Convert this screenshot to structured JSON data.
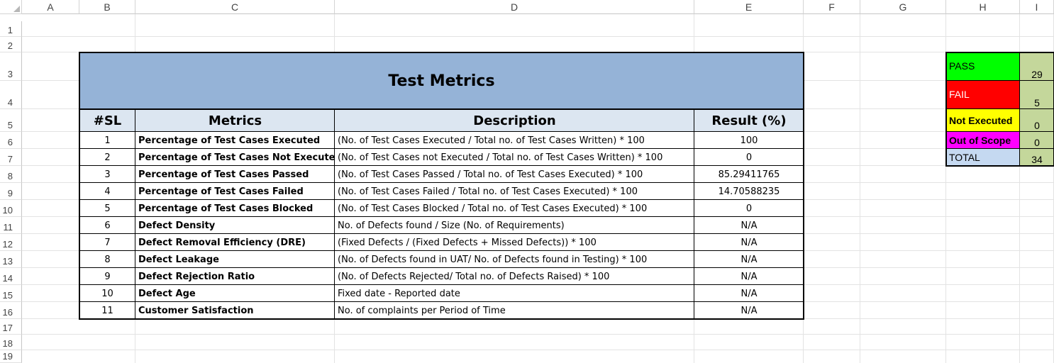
{
  "sheet": {
    "columns": [
      "A",
      "B",
      "C",
      "D",
      "E",
      "F",
      "G",
      "H",
      "I"
    ],
    "rows": [
      "1",
      "2",
      "3",
      "4",
      "5",
      "6",
      "7",
      "8",
      "9",
      "10",
      "11",
      "12",
      "13",
      "14",
      "15",
      "16",
      "17",
      "18",
      "19"
    ]
  },
  "metrics_table": {
    "title": "Test Metrics",
    "headers": {
      "sl": "#SL",
      "metrics": "Metrics",
      "description": "Description",
      "result": "Result (%)"
    },
    "rows": [
      {
        "sl": "1",
        "metric": "Percentage of Test Cases Executed",
        "description": "(No. of Test Cases Executed / Total no. of Test Cases Written) * 100",
        "result": "100"
      },
      {
        "sl": "2",
        "metric": "Percentage of Test Cases Not Executed",
        "description": "(No. of Test Cases not Executed / Total no. of Test Cases Written) * 100",
        "result": "0"
      },
      {
        "sl": "3",
        "metric": "Percentage of Test Cases Passed",
        "description": "(No. of Test Cases Passed / Total no. of Test Cases Executed) * 100",
        "result": "85.29411765"
      },
      {
        "sl": "4",
        "metric": "Percentage of Test Cases Failed",
        "description": "(No. of Test Cases Failed / Total no. of Test Cases Executed) * 100",
        "result": "14.70588235"
      },
      {
        "sl": "5",
        "metric": "Percentage of Test Cases Blocked",
        "description": "(No. of Test Cases Blocked / Total no. of Test Cases Executed) * 100",
        "result": "0"
      },
      {
        "sl": "6",
        "metric": "Defect Density",
        "description": "No. of Defects found / Size (No. of Requirements)",
        "result": "N/A"
      },
      {
        "sl": "7",
        "metric": "Defect Removal Efficiency (DRE)",
        "description": "(Fixed Defects / (Fixed Defects + Missed Defects)) * 100",
        "result": "N/A"
      },
      {
        "sl": "8",
        "metric": "Defect Leakage",
        "description": "(No. of Defects found in UAT/ No. of Defects found in Testing) * 100",
        "result": "N/A"
      },
      {
        "sl": "9",
        "metric": "Defect Rejection Ratio",
        "description": "(No. of Defects Rejected/ Total no. of Defects Raised) * 100",
        "result": "N/A"
      },
      {
        "sl": "10",
        "metric": "Defect Age",
        "description": "Fixed date - Reported date",
        "result": "N/A"
      },
      {
        "sl": "11",
        "metric": "Customer Satisfaction",
        "description": "No. of complaints per Period of Time",
        "result": "N/A"
      }
    ]
  },
  "summary": {
    "items": [
      {
        "label": "PASS",
        "value": "29",
        "bg": "#00ff00",
        "fg": "#000000"
      },
      {
        "label": "FAIL",
        "value": "5",
        "bg": "#ff0000",
        "fg": "#ffffff"
      },
      {
        "label": "Not Executed",
        "value": "0",
        "bg": "#ffff00",
        "fg": "#000000"
      },
      {
        "label": "Out of Scope",
        "value": "0",
        "bg": "#ff00ff",
        "fg": "#000000"
      },
      {
        "label": "TOTAL",
        "value": "34",
        "bg": "#c5d9f1",
        "fg": "#000000"
      }
    ]
  },
  "colors": {
    "title_bg": "#95b3d7",
    "header_bg": "#dce6f1",
    "value_bg": "#c4d79b"
  }
}
